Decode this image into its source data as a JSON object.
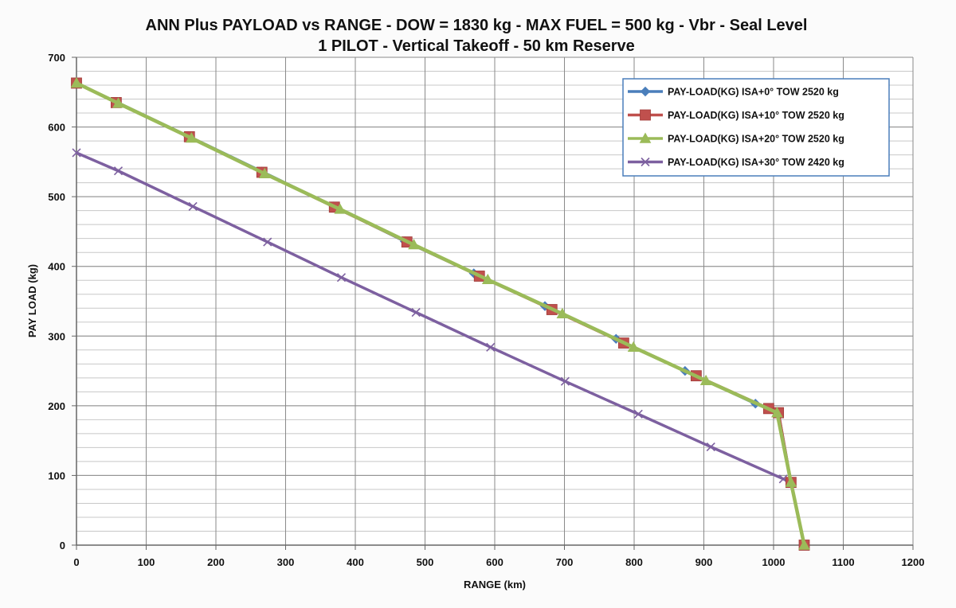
{
  "chart_data": {
    "type": "line",
    "title": "ANN Plus PAYLOAD vs RANGE - DOW = 1830 kg - MAX FUEL = 500 kg - Vbr - Seal Level",
    "subtitle": "1 PILOT - Vertical Takeoff - 50 km Reserve",
    "xlabel": "RANGE (km)",
    "ylabel": "PAY LOAD (kg)",
    "xlim": [
      0,
      1200
    ],
    "ylim": [
      0,
      700
    ],
    "xticks": [
      0,
      100,
      200,
      300,
      400,
      500,
      600,
      700,
      800,
      900,
      1000,
      1100,
      1200
    ],
    "yticks": [
      0,
      100,
      200,
      300,
      400,
      500,
      600,
      700
    ],
    "grid": true,
    "legend_position": "top-right",
    "series": [
      {
        "name": "PAY-LOAD(KG) ISA+0°   TOW 2520 kg",
        "color": "#4a7ebb",
        "marker": "diamond",
        "x": [
          0,
          57,
          160,
          266,
          369,
          471,
          570,
          672,
          774,
          873,
          974,
          1007,
          1025,
          1044
        ],
        "y": [
          663,
          636,
          587,
          536,
          486,
          436,
          390,
          343,
          296,
          250,
          203,
          190,
          90,
          0
        ]
      },
      {
        "name": "PAY-LOAD(KG) ISA+10° TOW 2520 kg",
        "color": "#c0504d",
        "marker": "square",
        "x": [
          0,
          57,
          162,
          266,
          370,
          474,
          578,
          682,
          785,
          889,
          993,
          1007,
          1025,
          1044
        ],
        "y": [
          663,
          635,
          586,
          535,
          485,
          435,
          386,
          338,
          290,
          243,
          196,
          190,
          90,
          0
        ]
      },
      {
        "name": "PAY-LOAD(KG) ISA+20° TOW 2520 kg",
        "color": "#9bbb59",
        "marker": "triangle",
        "x": [
          0,
          60,
          165,
          270,
          378,
          484,
          590,
          697,
          799,
          903,
          1005,
          1025,
          1044
        ],
        "y": [
          663,
          634,
          584,
          533,
          482,
          431,
          381,
          332,
          284,
          236,
          190,
          90,
          0
        ]
      },
      {
        "name": "PAY-LOAD(KG) ISA+30° TOW 2420 kg",
        "color": "#7d60a0",
        "marker": "x",
        "x": [
          0,
          60,
          167,
          274,
          380,
          487,
          594,
          701,
          806,
          910,
          1014,
          1025,
          1044
        ],
        "y": [
          563,
          537,
          486,
          435,
          384,
          334,
          284,
          235,
          188,
          141,
          95,
          90,
          0
        ]
      }
    ]
  }
}
